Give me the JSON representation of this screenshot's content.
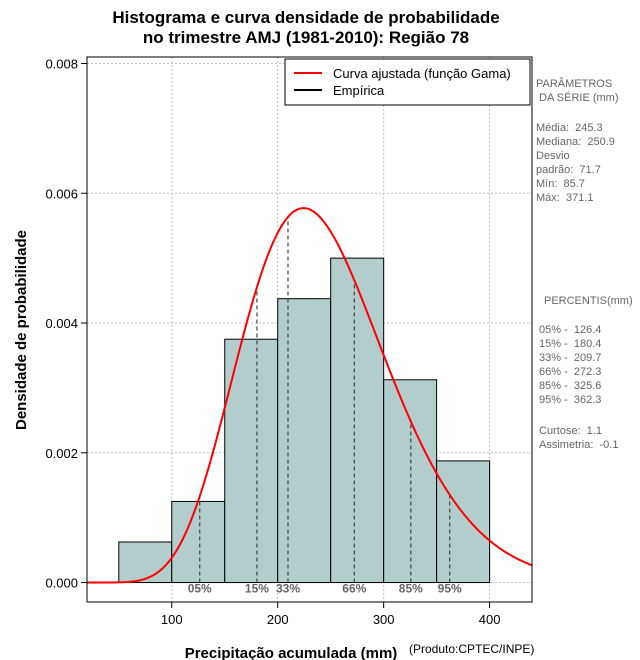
{
  "chart_data": {
    "type": "bar",
    "title_line1": "Histograma e curva densidade de probabilidade",
    "title_line2": "no trimestre AMJ (1981-2010): Região 78",
    "xlabel": "Precipitação acumulada (mm)",
    "ylabel": "Densidade de probabilidade",
    "credit": "(Produto:CPTEC/INPE)",
    "xlim": [
      20,
      440
    ],
    "ylim": [
      -0.0003,
      0.0081
    ],
    "x_ticks": [
      100,
      200,
      300,
      400
    ],
    "y_ticks": [
      0.0,
      0.002,
      0.004,
      0.006,
      0.008
    ],
    "y_tick_labels": [
      "0.000",
      "0.002",
      "0.004",
      "0.006",
      "0.008"
    ],
    "bins": [
      {
        "start": 50,
        "end": 100,
        "density": 0.000625
      },
      {
        "start": 100,
        "end": 150,
        "density": 0.00125
      },
      {
        "start": 150,
        "end": 200,
        "density": 0.00375
      },
      {
        "start": 200,
        "end": 250,
        "density": 0.004375
      },
      {
        "start": 250,
        "end": 300,
        "density": 0.005
      },
      {
        "start": 300,
        "end": 350,
        "density": 0.003125
      },
      {
        "start": 350,
        "end": 400,
        "density": 0.001875
      }
    ],
    "gamma_fit": {
      "shape": 11.7,
      "scale": 20.97
    },
    "percentile_lines": [
      {
        "label": "05%",
        "value": 126.4
      },
      {
        "label": "15%",
        "value": 180.4
      },
      {
        "label": "33%",
        "value": 209.7
      },
      {
        "label": "66%",
        "value": 272.3
      },
      {
        "label": "85%",
        "value": 325.6
      },
      {
        "label": "95%",
        "value": 362.3
      }
    ],
    "legend": {
      "position": "top-right",
      "entries": [
        {
          "label": "Curva ajustada (função Gama)",
          "color": "#ff0000"
        },
        {
          "label": "Empírica",
          "color": "#000000"
        }
      ]
    },
    "colors": {
      "bar_fill": "#b3cdcd",
      "curve": "#ff0000",
      "grid": "#bfbfbf"
    }
  },
  "stats_panel": {
    "params_heading": "PARÂMETROS\n DA SÉRIE (mm)",
    "params_text": "Média:  245.3\nMediana:  250.9\nDesvio\npadrão:  71.7\nMín:  85.7\nMáx:  371.1",
    "percentis_heading": "PERCENTIS(mm)",
    "percentis_text": "05% -  126.4\n15% -  180.4\n33% -  209.7\n66% -  272.3\n85% -  325.6\n95% -  362.3",
    "shape_text": "Curtose:  1.1\nAssimetria:  -0.1"
  }
}
